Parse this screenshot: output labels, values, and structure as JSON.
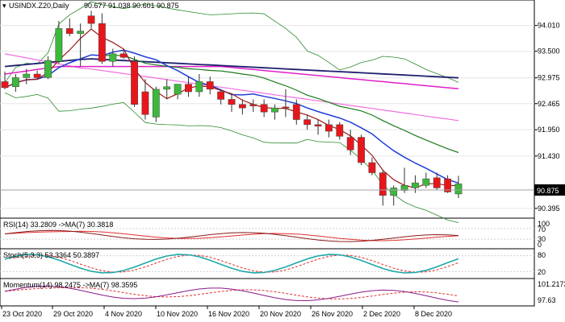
{
  "header": {
    "symbol": "USINDX.Z20,Daily",
    "ohlc": "90.677 91.038 90.601 90.875"
  },
  "colors": {
    "bull": "#3cb83c",
    "bear": "#e8161b",
    "ma_blue": "#1f3fd8",
    "ma_navy": "#1e1e6e",
    "ma_magenta": "#e020c8",
    "ma_pink": "#f070e0",
    "ma_green": "#1a7a1a",
    "ma_red": "#a01818",
    "band": "#2a8a2a",
    "indicator": "#1ea8a8",
    "signal": "#e03030"
  },
  "price_axis": {
    "ticks": [
      "94.010",
      "93.500",
      "92.975",
      "92.465",
      "91.950",
      "91.430",
      "90.395"
    ],
    "current": "90.875"
  },
  "date_axis": [
    "23 Oct 2020",
    "29 Oct 2020",
    "4 Nov 2020",
    "10 Nov 2020",
    "16 Nov 2020",
    "20 Nov 2020",
    "26 Nov 2020",
    "2 Dec 2020",
    "8 Dec 2020"
  ],
  "panels": {
    "rsi": {
      "label": "RSI(14) 33.2809 ->MA(7) 30.3818",
      "ticks": [
        "100",
        "70",
        "30",
        "0"
      ]
    },
    "stoch": {
      "label": "Stoch(5,3,3) 53.3364 50.3897",
      "ticks": [
        "80",
        "20"
      ]
    },
    "momentum": {
      "label": "Momentum(14) 98.2475 ->MA(7) 98.3595",
      "ticks": [
        "101.2173",
        "97.63"
      ]
    }
  },
  "chart_data": {
    "type": "candlestick",
    "candles": [
      {
        "o": 92.9,
        "h": 93.1,
        "l": 92.75,
        "c": 92.78
      },
      {
        "o": 92.8,
        "h": 93.05,
        "l": 92.7,
        "c": 92.98
      },
      {
        "o": 92.98,
        "h": 93.15,
        "l": 92.85,
        "c": 93.05
      },
      {
        "o": 93.05,
        "h": 93.12,
        "l": 92.95,
        "c": 92.98
      },
      {
        "o": 92.98,
        "h": 93.4,
        "l": 92.95,
        "c": 93.32
      },
      {
        "o": 93.3,
        "h": 94.1,
        "l": 93.25,
        "c": 93.95
      },
      {
        "o": 93.95,
        "h": 94.15,
        "l": 93.8,
        "c": 93.85
      },
      {
        "o": 93.85,
        "h": 94.05,
        "l": 93.2,
        "c": 93.9
      },
      {
        "o": 94.2,
        "h": 94.3,
        "l": 93.95,
        "c": 94.05
      },
      {
        "o": 94.05,
        "h": 94.25,
        "l": 93.25,
        "c": 93.3
      },
      {
        "o": 93.3,
        "h": 93.55,
        "l": 93.2,
        "c": 93.45
      },
      {
        "o": 93.45,
        "h": 93.55,
        "l": 93.35,
        "c": 93.38
      },
      {
        "o": 93.3,
        "h": 93.4,
        "l": 92.4,
        "c": 92.45
      },
      {
        "o": 92.7,
        "h": 92.95,
        "l": 92.15,
        "c": 92.25
      },
      {
        "o": 92.2,
        "h": 92.8,
        "l": 92.1,
        "c": 92.75
      },
      {
        "o": 92.75,
        "h": 92.95,
        "l": 92.55,
        "c": 92.8
      },
      {
        "o": 92.65,
        "h": 92.85,
        "l": 92.55,
        "c": 92.85
      },
      {
        "o": 92.85,
        "h": 93.0,
        "l": 92.6,
        "c": 92.7
      },
      {
        "o": 92.7,
        "h": 93.05,
        "l": 92.6,
        "c": 92.9
      },
      {
        "o": 92.9,
        "h": 93.0,
        "l": 92.65,
        "c": 92.75
      },
      {
        "o": 92.7,
        "h": 92.75,
        "l": 92.45,
        "c": 92.55
      },
      {
        "o": 92.55,
        "h": 92.65,
        "l": 92.3,
        "c": 92.45
      },
      {
        "o": 92.45,
        "h": 92.55,
        "l": 92.25,
        "c": 92.38
      },
      {
        "o": 92.45,
        "h": 92.55,
        "l": 92.3,
        "c": 92.42
      },
      {
        "o": 92.45,
        "h": 92.55,
        "l": 92.2,
        "c": 92.3
      },
      {
        "o": 92.3,
        "h": 92.45,
        "l": 92.15,
        "c": 92.38
      },
      {
        "o": 92.4,
        "h": 92.75,
        "l": 92.2,
        "c": 92.38
      },
      {
        "o": 92.45,
        "h": 92.55,
        "l": 92.05,
        "c": 92.15
      },
      {
        "o": 92.15,
        "h": 92.25,
        "l": 91.95,
        "c": 92.05
      },
      {
        "o": 92.05,
        "h": 92.15,
        "l": 91.85,
        "c": 92.02
      },
      {
        "o": 92.05,
        "h": 92.15,
        "l": 91.8,
        "c": 91.92
      },
      {
        "o": 92.05,
        "h": 92.1,
        "l": 91.75,
        "c": 91.82
      },
      {
        "o": 91.8,
        "h": 91.95,
        "l": 91.45,
        "c": 91.55
      },
      {
        "o": 91.8,
        "h": 91.85,
        "l": 91.25,
        "c": 91.3
      },
      {
        "o": 91.3,
        "h": 91.4,
        "l": 91.05,
        "c": 91.1
      },
      {
        "o": 91.1,
        "h": 91.15,
        "l": 90.45,
        "c": 90.65
      },
      {
        "o": 90.65,
        "h": 90.85,
        "l": 90.45,
        "c": 90.8
      },
      {
        "o": 90.75,
        "h": 91.2,
        "l": 90.7,
        "c": 90.85
      },
      {
        "o": 90.8,
        "h": 91.05,
        "l": 90.7,
        "c": 90.9
      },
      {
        "o": 90.85,
        "h": 91.1,
        "l": 90.8,
        "c": 90.98
      },
      {
        "o": 91.0,
        "h": 91.1,
        "l": 90.75,
        "c": 90.8
      },
      {
        "o": 90.98,
        "h": 91.05,
        "l": 90.7,
        "c": 90.72
      },
      {
        "o": 90.68,
        "h": 91.04,
        "l": 90.6,
        "c": 90.88
      }
    ]
  }
}
